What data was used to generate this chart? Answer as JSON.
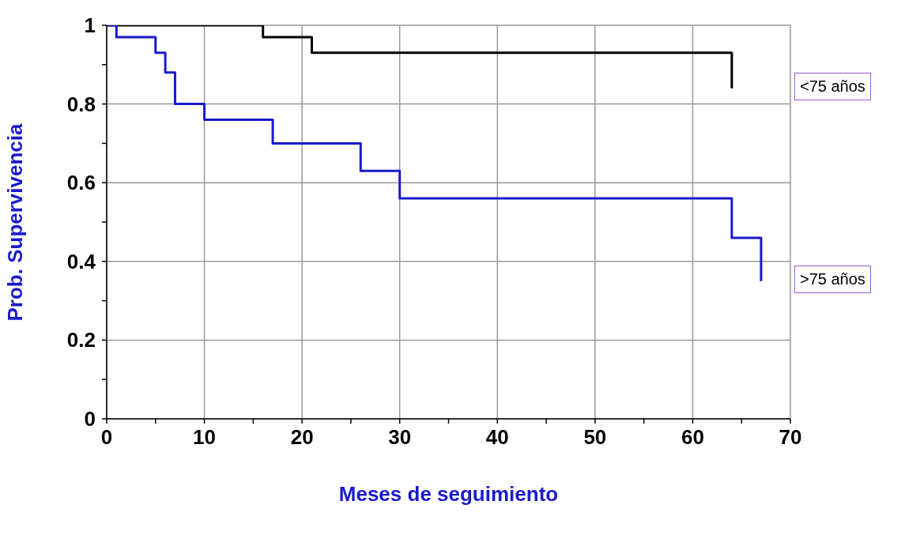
{
  "chart_data": {
    "type": "step",
    "xlabel": "Meses de seguimiento",
    "ylabel": "Prob. Supervivencia",
    "series": [
      {
        "name": "<75 años",
        "color": "#000000",
        "x": [
          0,
          16,
          21,
          64
        ],
        "values": [
          1,
          0.97,
          0.93,
          0.84
        ]
      },
      {
        "name": ">75 años",
        "color": "#1a1acc",
        "x": [
          0,
          1,
          5,
          6,
          7,
          10,
          17,
          26,
          30,
          64,
          67
        ],
        "values": [
          1,
          0.97,
          0.93,
          0.88,
          0.8,
          0.76,
          0.7,
          0.63,
          0.56,
          0.46,
          0.35
        ]
      }
    ],
    "xlim": [
      0,
      70
    ],
    "xticks": [
      0,
      {
        "value": 5,
        "label": null
      },
      10,
      {
        "value": 15,
        "label": null
      },
      20,
      {
        "value": 25,
        "label": null
      },
      30,
      {
        "value": 35,
        "label": null
      },
      40,
      {
        "value": 45,
        "label": null
      },
      50,
      {
        "value": 55,
        "label": null
      },
      60,
      {
        "value": 65,
        "label": null
      },
      70
    ],
    "ylim": [
      0,
      1
    ],
    "yticks": [
      0,
      {
        "value": 0.1,
        "label": null
      },
      0.2,
      {
        "value": 0.3,
        "label": null
      },
      0.4,
      {
        "value": 0.5,
        "label": null
      },
      0.6,
      {
        "value": 0.7,
        "label": null
      },
      0.8,
      {
        "value": 0.9,
        "label": null
      },
      1
    ],
    "grid": true,
    "legend": "right",
    "line_style": "solid",
    "marker": "none"
  }
}
